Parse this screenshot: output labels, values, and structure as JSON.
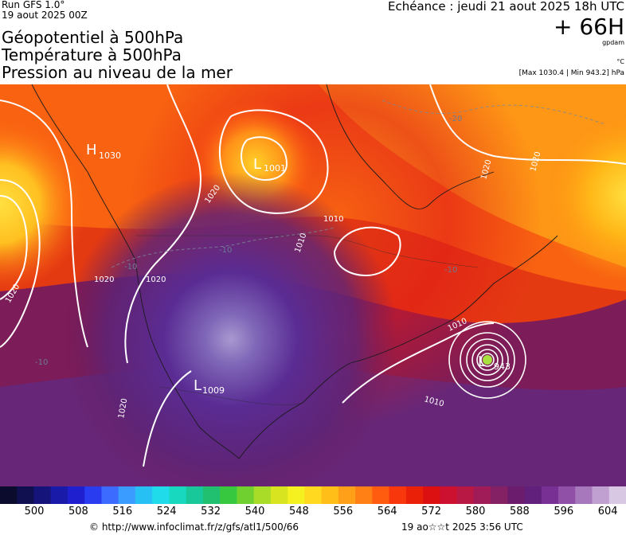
{
  "header": {
    "run_line1": "Run GFS 1.0°",
    "run_line2": "19 aout 2025 00Z",
    "title_line1": "Géopotentiel à 500hPa",
    "title_line2": "Température à 500hPa",
    "title_line3": "Pression au niveau de la mer",
    "echeance": "Echéance : jeudi 21 aout 2025 18h UTC",
    "lead_time": "+ 66H",
    "unit_geopotential": "gpdam",
    "unit_temperature": "°C",
    "max_min": "[Max 1030.4 | Min 943.2] hPa"
  },
  "map": {
    "pressure_centers": [
      {
        "type": "H",
        "value": "1030"
      },
      {
        "type": "L",
        "value": "1001"
      },
      {
        "type": "L",
        "value": "1009"
      },
      {
        "type": "L",
        "value": "943"
      }
    ],
    "isobar_labels": [
      "1020",
      "1020",
      "1020",
      "1020",
      "1020",
      "1020",
      "1010",
      "1010",
      "1010",
      "1010",
      "1020"
    ],
    "temperature_labels": [
      "-20",
      "-10",
      "-10",
      "-10",
      "-10"
    ]
  },
  "colorbar": {
    "ticks": [
      "500",
      "508",
      "516",
      "524",
      "532",
      "540",
      "548",
      "556",
      "564",
      "572",
      "580",
      "588",
      "596",
      "604"
    ],
    "colors": [
      "#0b0b2e",
      "#101050",
      "#14147a",
      "#1a1aa8",
      "#1f1fd0",
      "#2a3cf0",
      "#3c6cff",
      "#3a9cff",
      "#27c0f5",
      "#20dcea",
      "#18d8c0",
      "#18c89a",
      "#20c070",
      "#38c840",
      "#70d030",
      "#a8dc28",
      "#d8e420",
      "#f5f020",
      "#ffd820",
      "#ffbe18",
      "#ffa018",
      "#ff8014",
      "#ff5c10",
      "#f8380c",
      "#ea2008",
      "#dc1010",
      "#cc1030",
      "#b81844",
      "#a01c58",
      "#842064",
      "#6c1c6c",
      "#60207c",
      "#783094",
      "#9050a8",
      "#a878bc",
      "#c0a0d0",
      "#d8c8e4"
    ]
  },
  "footer": {
    "url": "© http://www.infoclimat.fr/z/gfs/atl1/500/66",
    "generated": "19 ao☆☆t 2025  3:56 UTC"
  }
}
